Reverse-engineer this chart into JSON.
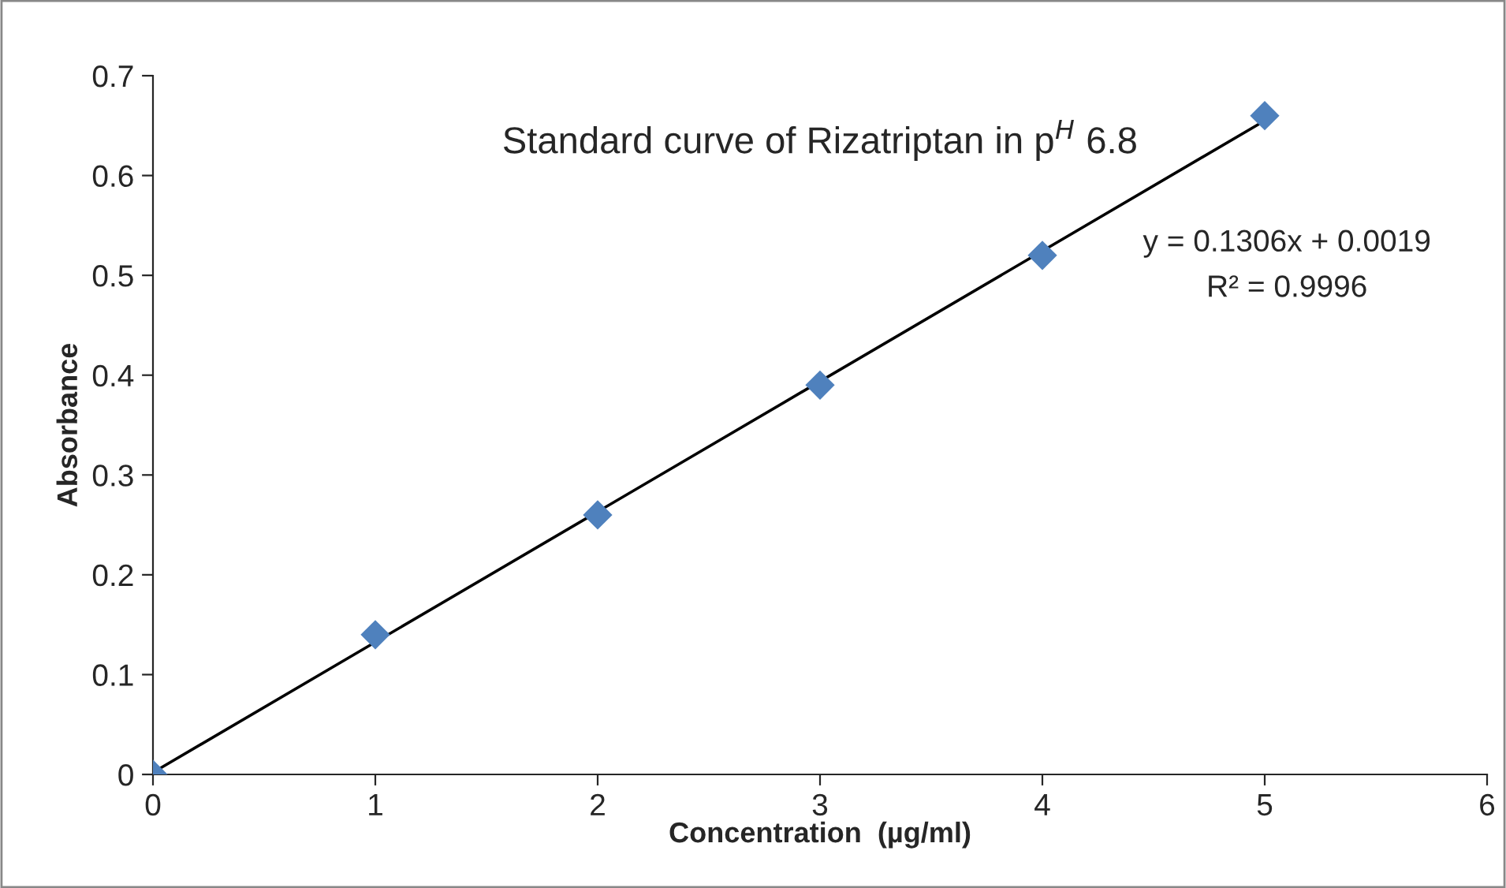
{
  "chart_data": {
    "type": "scatter",
    "title": "Standard curve of Rizatriptan in p$^{H}$ 6.8",
    "xlabel": "Concentration  (µg/ml)",
    "ylabel": "Absorbance",
    "x": [
      0,
      1,
      2,
      3,
      4,
      5
    ],
    "series": [
      {
        "color": "#4f81bd",
        "marker": "diamond",
        "values": [
          0,
          0.14,
          0.26,
          0.39,
          0.52,
          0.66
        ]
      },
      {
        "type": "line",
        "color": "#000000",
        "marker": "none",
        "line_style": "solid",
        "x": [
          0,
          5
        ],
        "values": [
          0.002,
          0.655
        ]
      }
    ],
    "annotations": [
      "y = 0.1306x + 0.0019",
      "R² = 0.9996"
    ],
    "xlim": [
      0,
      6
    ],
    "xticks": [
      0,
      1,
      2,
      3,
      4,
      5,
      6
    ],
    "ylim": [
      0,
      0.7
    ],
    "yticks": [
      0,
      0.1,
      0.2,
      0.3,
      0.4,
      0.5,
      0.6,
      0.7
    ],
    "grid": false,
    "legend": false
  }
}
